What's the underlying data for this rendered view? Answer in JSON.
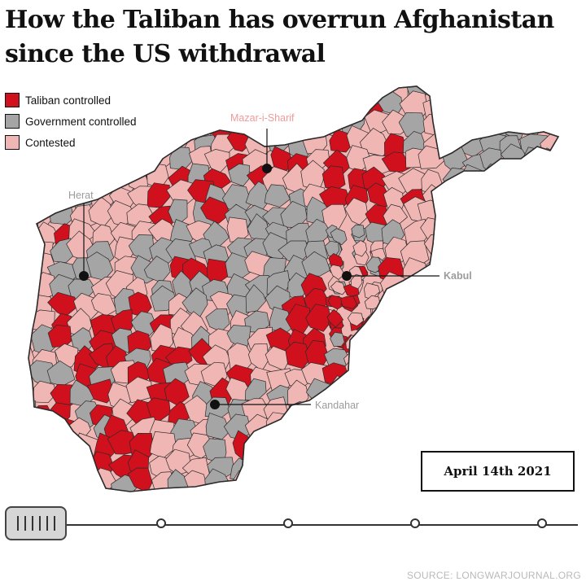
{
  "title": "How the Taliban has overrun Afghanistan since the US withdrawal",
  "legend": [
    {
      "label": "Taliban controlled",
      "color": "#d0101d"
    },
    {
      "label": "Government controlled",
      "color": "#a5a5a5"
    },
    {
      "label": "Contested",
      "color": "#f0b6b4"
    }
  ],
  "colors": {
    "taliban": "#d0101d",
    "government": "#a5a5a5",
    "contested": "#f0b6b4",
    "border": "#2b2b2b",
    "city_label_light": "#f09a9a",
    "city_label_grey": "#9b9b9b"
  },
  "cities": [
    {
      "name": "Mazar-i-Sharif",
      "label_color": "city_label_light"
    },
    {
      "name": "Herat",
      "label_color": "city_label_grey"
    },
    {
      "name": "Kabul",
      "label_color": "city_label_grey"
    },
    {
      "name": "Kandahar",
      "label_color": "city_label_grey"
    }
  ],
  "date_label": "April 14th 2021",
  "timeline": {
    "steps": 5,
    "current_step": 0
  },
  "source": "SOURCE: LONGWARJOURNAL.ORG"
}
